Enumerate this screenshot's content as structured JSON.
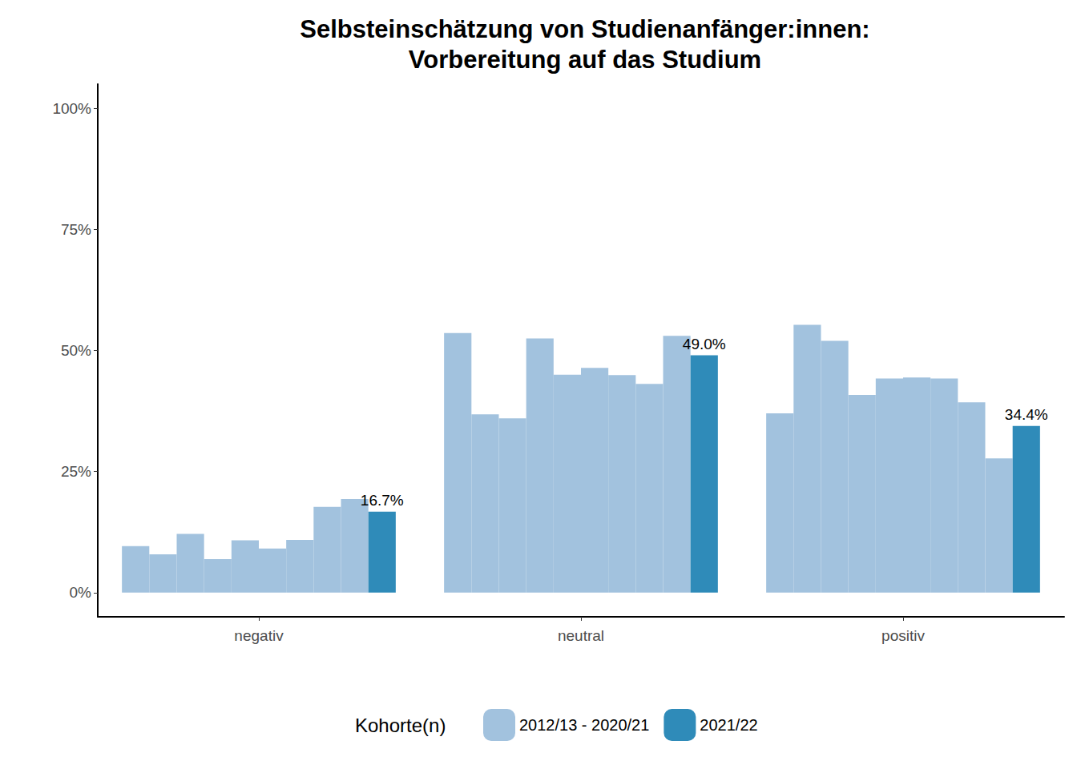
{
  "chart_data": {
    "type": "bar",
    "title": "Selbsteinschätzung von Studienanfänger:innen:\nVorbereitung auf das Studium",
    "categories": [
      "negativ",
      "neutral",
      "positiv"
    ],
    "series": [
      {
        "name": "2012/13 - 2020/21",
        "color": "#a2c2de",
        "values": [
          9.6,
          53.6,
          37.0
        ]
      },
      {
        "name": "2012/13 - 2020/21",
        "color": "#a2c2de",
        "values": [
          7.9,
          36.8,
          55.3
        ]
      },
      {
        "name": "2012/13 - 2020/21",
        "color": "#a2c2de",
        "values": [
          12.1,
          36.0,
          52.0
        ]
      },
      {
        "name": "2012/13 - 2020/21",
        "color": "#a2c2de",
        "values": [
          6.9,
          52.5,
          40.8
        ]
      },
      {
        "name": "2012/13 - 2020/21",
        "color": "#a2c2de",
        "values": [
          10.8,
          45.0,
          44.2
        ]
      },
      {
        "name": "2012/13 - 2020/21",
        "color": "#a2c2de",
        "values": [
          9.1,
          46.4,
          44.4
        ]
      },
      {
        "name": "2012/13 - 2020/21",
        "color": "#a2c2de",
        "values": [
          10.9,
          44.9,
          44.2
        ]
      },
      {
        "name": "2012/13 - 2020/21",
        "color": "#a2c2de",
        "values": [
          17.7,
          43.1,
          39.3
        ]
      },
      {
        "name": "2012/13 - 2020/21",
        "color": "#a2c2de",
        "values": [
          19.3,
          53.0,
          27.7
        ]
      },
      {
        "name": "2021/22",
        "color": "#2f8bb9",
        "values": [
          16.7,
          49.0,
          34.4
        ],
        "data_labels": true,
        "value_labels": [
          "16.7%",
          "49.0%",
          "34.4%"
        ]
      }
    ],
    "ylim": [
      -5,
      105
    ],
    "yticks": [
      {
        "value": 0,
        "label": "0%"
      },
      {
        "value": 25,
        "label": "25%"
      },
      {
        "value": 50,
        "label": "50%"
      },
      {
        "value": 75,
        "label": "75%"
      },
      {
        "value": 100,
        "label": "100%"
      }
    ],
    "grid": false,
    "legend": "bottom",
    "legend_title": "Kohorte(n)"
  }
}
